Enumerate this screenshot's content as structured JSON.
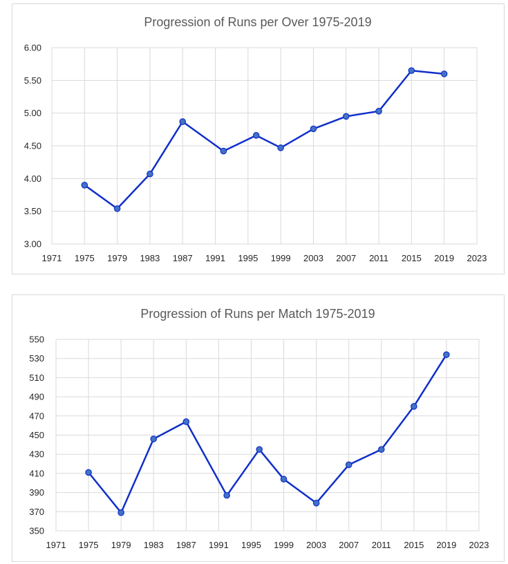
{
  "charts": [
    {
      "id": "chart1",
      "title": "Progression of Runs per Over 1975-2019",
      "chart_data": {
        "type": "line",
        "title": "Progression of Runs per Over 1975-2019",
        "xlabel": "",
        "ylabel": "",
        "x": [
          1975,
          1979,
          1983,
          1987,
          1992,
          1996,
          1999,
          2003,
          2007,
          2011,
          2015,
          2019
        ],
        "series": [
          {
            "values": [
              3.9,
              3.54,
              4.07,
              4.87,
              4.42,
              4.66,
              4.47,
              4.76,
              4.95,
              5.03,
              5.65,
              5.6
            ]
          }
        ],
        "xlim": [
          1971,
          2023
        ],
        "ylim": [
          3.0,
          6.0
        ],
        "x_ticks": [
          1971,
          1975,
          1979,
          1983,
          1987,
          1991,
          1995,
          1999,
          2003,
          2007,
          2011,
          2015,
          2019,
          2023
        ],
        "y_ticks": [
          "3.00",
          "3.50",
          "4.00",
          "4.50",
          "5.00",
          "5.50",
          "6.00"
        ],
        "grid": true,
        "legend": "none",
        "line_color": "#0f2fc9",
        "marker_color": "#4472c4"
      }
    },
    {
      "id": "chart2",
      "title": "Progression of Runs per Match 1975-2019",
      "chart_data": {
        "type": "line",
        "title": "Progression of Runs per Match 1975-2019",
        "xlabel": "",
        "ylabel": "",
        "x": [
          1975,
          1979,
          1983,
          1987,
          1992,
          1996,
          1999,
          2003,
          2007,
          2011,
          2015,
          2019
        ],
        "series": [
          {
            "values": [
              411,
              369,
              446,
              464,
              387,
              435,
              404,
              379,
              419,
              435,
              480,
              534
            ]
          }
        ],
        "xlim": [
          1971,
          2023
        ],
        "ylim": [
          350,
          550
        ],
        "x_ticks": [
          1971,
          1975,
          1979,
          1983,
          1987,
          1991,
          1995,
          1999,
          2003,
          2007,
          2011,
          2015,
          2019,
          2023
        ],
        "y_ticks": [
          "350",
          "370",
          "390",
          "410",
          "430",
          "450",
          "470",
          "490",
          "510",
          "530",
          "550"
        ],
        "grid": true,
        "legend": "none",
        "line_color": "#0f2fc9",
        "marker_color": "#4472c4"
      }
    }
  ]
}
